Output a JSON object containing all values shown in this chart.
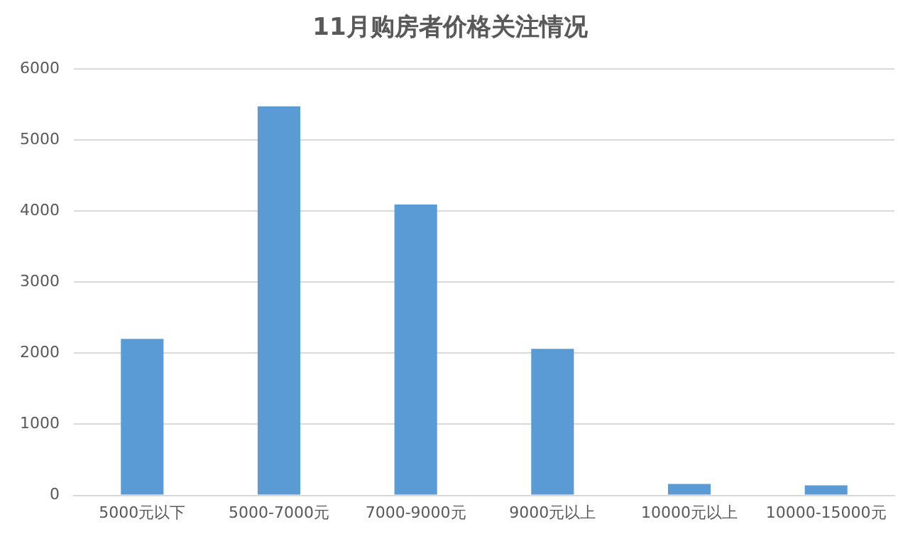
{
  "chart_data": {
    "type": "bar",
    "title": "11月购房者价格关注情况",
    "categories": [
      "5000元以下",
      "5000-7000元",
      "7000-9000元",
      "9000元以上",
      "10000元以上",
      "10000-15000元"
    ],
    "values": [
      2200,
      5470,
      4090,
      2060,
      160,
      140
    ],
    "color": "#5b9bd5",
    "ylim": [
      0,
      6000
    ],
    "yticks": [
      0,
      1000,
      2000,
      3000,
      4000,
      5000,
      6000
    ],
    "grid": "y",
    "legend": false
  }
}
